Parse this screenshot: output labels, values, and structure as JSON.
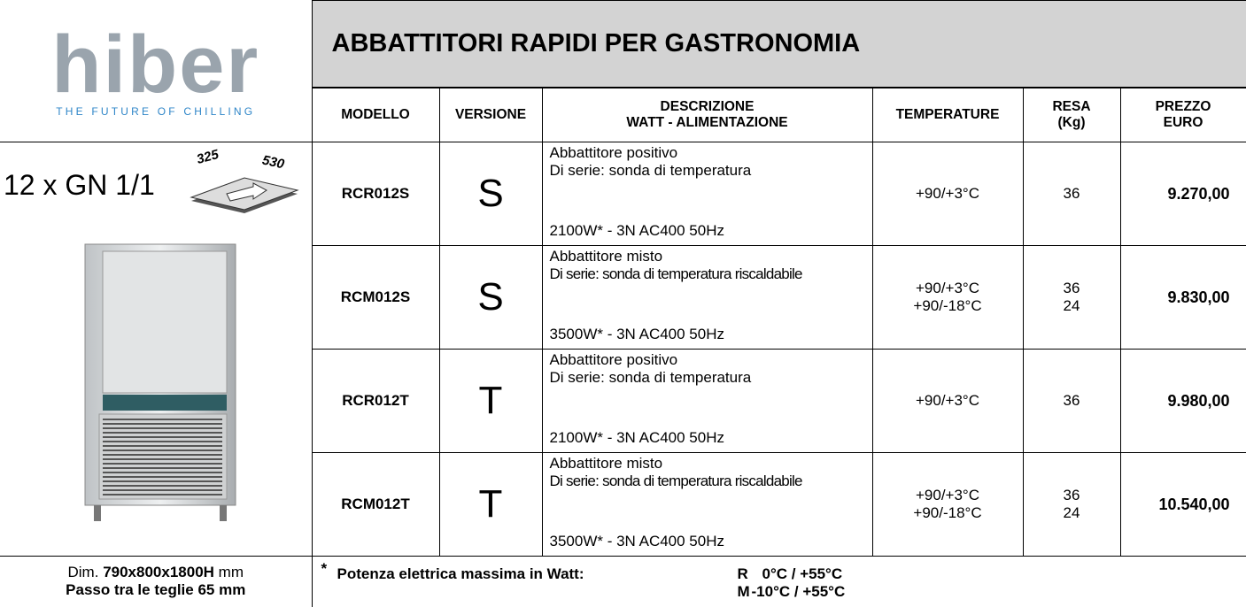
{
  "logo": {
    "brand": "hiber",
    "tagline": "THE FUTURE OF CHILLING"
  },
  "title": "ABBATTITORI RAPIDI PER GASTRONOMIA",
  "product": {
    "capacity": "12 x GN 1/1",
    "tray_dims": [
      "325",
      "530"
    ]
  },
  "table": {
    "headers": [
      [
        "MODELLO"
      ],
      [
        "VERSIONE"
      ],
      [
        "DESCRIZIONE",
        "WATT - ALIMENTAZIONE"
      ],
      [
        "TEMPERATURE"
      ],
      [
        "RESA",
        "(Kg)"
      ],
      [
        "PREZZO",
        "EURO"
      ]
    ],
    "rows": [
      {
        "model": "RCR012S",
        "version": "S",
        "description": [
          "Abbattitore positivo",
          "Di serie: sonda di temperatura",
          "2100W* - 3N AC400 50Hz"
        ],
        "temperatures": [
          "+90/+3°C"
        ],
        "resa": [
          "36"
        ],
        "price": "9.270,00"
      },
      {
        "model": "RCM012S",
        "version": "S",
        "description": [
          "Abbattitore misto",
          "Di serie: sonda di temperatura riscaldabile",
          "3500W* - 3N AC400 50Hz"
        ],
        "temperatures": [
          "+90/+3°C",
          "+90/-18°C"
        ],
        "resa": [
          "36",
          "24"
        ],
        "price": "9.830,00"
      },
      {
        "model": "RCR012T",
        "version": "T",
        "description": [
          "Abbattitore positivo",
          "Di serie: sonda di temperatura",
          "2100W* - 3N AC400 50Hz"
        ],
        "temperatures": [
          "+90/+3°C"
        ],
        "resa": [
          "36"
        ],
        "price": "9.980,00"
      },
      {
        "model": "RCM012T",
        "version": "T",
        "description": [
          "Abbattitore misto",
          "Di serie: sonda di temperatura riscaldabile",
          "3500W* - 3N AC400 50Hz"
        ],
        "temperatures": [
          "+90/+3°C",
          "+90/-18°C"
        ],
        "resa": [
          "36",
          "24"
        ],
        "price": "10.540,00"
      }
    ]
  },
  "footer": {
    "dimensions": {
      "prefix": "Dim.",
      "value": "790x800x1800H",
      "unit": "mm"
    },
    "pitch": "Passo tra le teglie 65 mm",
    "note_mark": "*",
    "note": "Potenza elettrica massima in Watt:",
    "ranges": [
      {
        "code": "R",
        "range": "0°C / +55°C"
      },
      {
        "code": "M",
        "range": "-10°C / +55°C"
      }
    ]
  }
}
